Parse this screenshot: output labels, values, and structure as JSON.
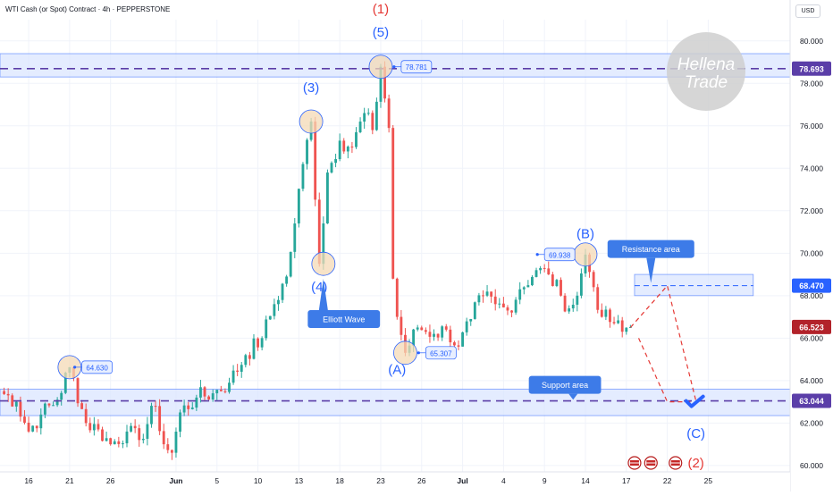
{
  "header": {
    "title": "WTI Cash (or Spot) Contract · 4h · PEPPERSTONE",
    "currency": "USD"
  },
  "colors": {
    "up": "#26a69a",
    "down": "#ef5350",
    "zone_fill": "#dbe6ff",
    "zone_line": "#2962ff",
    "dash_purple": "#5b3ea8",
    "wave_blue": "#2962ff",
    "wave_red": "#e53935",
    "label_box": "#3d7be8",
    "price_purple": "#5b3ea8",
    "price_red": "#b2222a",
    "price_blue": "#2962ff"
  },
  "watermark": {
    "line1": "Hellena",
    "line2": "Trade"
  },
  "chart_data": {
    "type": "candlestick",
    "title": "WTI Cash (or Spot) Contract · 4h · PEPPERSTONE",
    "xlabel": "",
    "ylabel": "USD",
    "ylim": [
      59.7,
      81.0
    ],
    "y_ticks": [
      60.0,
      62.0,
      64.0,
      66.0,
      68.0,
      70.0,
      72.0,
      74.0,
      76.0,
      78.0,
      80.0
    ],
    "x_ticks": [
      {
        "label": "16",
        "idx": 7
      },
      {
        "label": "21",
        "idx": 17
      },
      {
        "label": "26",
        "idx": 27
      },
      {
        "label": "Jun",
        "idx": 43
      },
      {
        "label": "5",
        "idx": 53
      },
      {
        "label": "10",
        "idx": 63
      },
      {
        "label": "13",
        "idx": 73
      },
      {
        "label": "18",
        "idx": 83
      },
      {
        "label": "23",
        "idx": 93
      },
      {
        "label": "26",
        "idx": 103
      },
      {
        "label": "Jul",
        "idx": 113
      },
      {
        "label": "4",
        "idx": 123
      },
      {
        "label": "9",
        "idx": 133
      },
      {
        "label": "14",
        "idx": 143
      },
      {
        "label": "17",
        "idx": 153
      },
      {
        "label": "22",
        "idx": 163
      },
      {
        "label": "25",
        "idx": 173
      }
    ],
    "x_total": 193,
    "anchors": [
      [
        0,
        63.5
      ],
      [
        4,
        63.0
      ],
      [
        7,
        61.6
      ],
      [
        10,
        62.4
      ],
      [
        14,
        63.1
      ],
      [
        17,
        64.63
      ],
      [
        21,
        62.0
      ],
      [
        24,
        61.7
      ],
      [
        27,
        61.0
      ],
      [
        31,
        61.6
      ],
      [
        34,
        61.2
      ],
      [
        38,
        62.8
      ],
      [
        40,
        61.0
      ],
      [
        42,
        60.6
      ],
      [
        44,
        62.5
      ],
      [
        48,
        63.2
      ],
      [
        52,
        63.4
      ],
      [
        56,
        63.9
      ],
      [
        60,
        65.2
      ],
      [
        64,
        66.0
      ],
      [
        67,
        67.6
      ],
      [
        70,
        68.9
      ],
      [
        72,
        71.4
      ],
      [
        74,
        74.2
      ],
      [
        76,
        76.2
      ],
      [
        78,
        69.5
      ],
      [
        80,
        73.8
      ],
      [
        83,
        75.3
      ],
      [
        86,
        75.0
      ],
      [
        89,
        76.6
      ],
      [
        91,
        75.8
      ],
      [
        93,
        78.781
      ],
      [
        95,
        75.9
      ],
      [
        96,
        68.8
      ],
      [
        97,
        67.0
      ],
      [
        99,
        65.307
      ],
      [
        102,
        66.5
      ],
      [
        106,
        66.2
      ],
      [
        109,
        66.4
      ],
      [
        112,
        65.6
      ],
      [
        115,
        66.9
      ],
      [
        118,
        68.0
      ],
      [
        121,
        67.6
      ],
      [
        124,
        67.3
      ],
      [
        127,
        68.3
      ],
      [
        131,
        69.2
      ],
      [
        134,
        69.0
      ],
      [
        137,
        68.0
      ],
      [
        139,
        67.4
      ],
      [
        141,
        68.0
      ],
      [
        143,
        69.938
      ],
      [
        145,
        68.4
      ],
      [
        147,
        67.0
      ],
      [
        150,
        66.7
      ],
      [
        152,
        66.3
      ],
      [
        154,
        66.523
      ]
    ],
    "vgrid_idx": [
      7,
      17,
      27,
      43,
      53,
      63,
      73,
      83,
      93,
      103,
      113,
      123,
      133,
      143,
      153,
      163,
      173
    ],
    "zones": [
      {
        "y1": 78.3,
        "y2": 79.4,
        "x0": 0,
        "x1": 193
      },
      {
        "y1": 62.35,
        "y2": 63.6,
        "x0": 0,
        "x1": 193
      },
      {
        "y1": 68.0,
        "y2": 69.0,
        "x0": 155,
        "x1": 184
      }
    ],
    "levels": [
      {
        "y": 78.693,
        "label": "78.693",
        "color": "#5b3ea8"
      },
      {
        "y": 68.47,
        "label": "68.470",
        "color": "#2962ff"
      },
      {
        "y": 66.523,
        "label": "66.523",
        "color": "#b2222a"
      },
      {
        "y": 63.044,
        "label": "63.044",
        "color": "#5b3ea8"
      }
    ],
    "wave_labels": [
      {
        "text": "(1)",
        "x": 93,
        "y": 81.3,
        "color": "red"
      },
      {
        "text": "(5)",
        "x": 93,
        "y": 80.2,
        "color": "blue"
      },
      {
        "text": "(3)",
        "x": 76,
        "y": 77.6,
        "color": "blue"
      },
      {
        "text": "(4)",
        "x": 78,
        "y": 68.2,
        "color": "blue"
      },
      {
        "text": "(A)",
        "x": 97,
        "y": 64.3,
        "color": "blue"
      },
      {
        "text": "(B)",
        "x": 143,
        "y": 70.7,
        "color": "blue"
      },
      {
        "text": "(C)",
        "x": 170,
        "y": 61.3,
        "color": "blue"
      },
      {
        "text": "(2)",
        "x": 170,
        "y": 59.9,
        "color": "red"
      }
    ],
    "price_tags": [
      {
        "text": "64.630",
        "x": 20,
        "y": 64.63
      },
      {
        "text": "78.781",
        "x": 98,
        "y": 78.781
      },
      {
        "text": "65.307",
        "x": 104,
        "y": 65.307
      },
      {
        "text": "69.938",
        "x": 133,
        "y": 69.938
      }
    ],
    "circles": [
      {
        "x": 17,
        "y": 64.63
      },
      {
        "x": 93,
        "y": 78.781
      },
      {
        "x": 76,
        "y": 76.2
      },
      {
        "x": 79,
        "y": 69.5
      },
      {
        "x": 99,
        "y": 65.307
      },
      {
        "x": 143,
        "y": 69.938
      }
    ],
    "annotations": [
      {
        "text": "Elliott Wave",
        "x": 84,
        "y": 66.9,
        "point_x": 79,
        "point_y": 68.8
      },
      {
        "text": "Resistance area",
        "x": 159,
        "y": 70.2,
        "point_x": 159,
        "point_y": 68.6
      },
      {
        "text": "Support area",
        "x": 138,
        "y": 63.8,
        "point_x": 140,
        "point_y": 63.1
      }
    ],
    "projection": [
      [
        154,
        66.5
      ],
      [
        163,
        68.47
      ],
      [
        170,
        63.044
      ]
    ],
    "projection2": [
      [
        156,
        66.0
      ],
      [
        163,
        63.0
      ],
      [
        169,
        63.0
      ]
    ],
    "check": {
      "x": 170,
      "y": 63.0
    },
    "flags": [
      155,
      159,
      165
    ]
  }
}
